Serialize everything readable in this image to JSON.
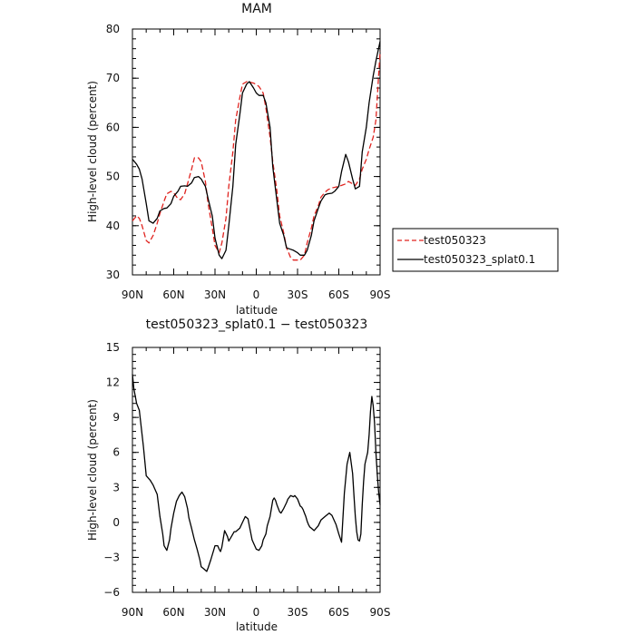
{
  "colors": {
    "test": "#e0231f",
    "splat": "#000000",
    "axis": "#000000",
    "background": "#ffffff"
  },
  "chart_data": [
    {
      "type": "line",
      "title": "MAM",
      "xlabel": "latitude",
      "ylabel": "High-level cloud (percent)",
      "xlim": [
        90,
        -90
      ],
      "ylim": [
        30,
        80
      ],
      "grid": false,
      "legend_placement": "right",
      "xticks": [
        90,
        60,
        30,
        0,
        -30,
        -60,
        -90
      ],
      "xtick_labels": [
        "90N",
        "60N",
        "30N",
        "0",
        "30S",
        "60S",
        "90S"
      ],
      "yticks": [
        30,
        40,
        50,
        60,
        70,
        80
      ],
      "ytick_labels": [
        "30",
        "40",
        "50",
        "60",
        "70",
        "80"
      ],
      "series": [
        {
          "name": "test050323",
          "style": "dashed",
          "color": "#e0231f",
          "x": [
            90,
            87,
            85,
            83,
            80,
            78,
            75,
            72,
            70,
            67,
            65,
            62,
            60,
            57,
            55,
            52,
            50,
            47,
            45,
            42,
            40,
            37,
            35,
            32,
            30,
            27,
            25,
            22,
            20,
            17,
            15,
            12,
            10,
            7,
            5,
            2,
            0,
            -2,
            -5,
            -7,
            -10,
            -12,
            -15,
            -17,
            -20,
            -22,
            -25,
            -27,
            -30,
            -32,
            -35,
            -37,
            -40,
            -42,
            -45,
            -47,
            -50,
            -52,
            -55,
            -57,
            -60,
            -62,
            -65,
            -67,
            -70,
            -72,
            -75,
            -77,
            -80,
            -82,
            -85,
            -87,
            -90
          ],
          "y": [
            41,
            42,
            41.5,
            40,
            37,
            36.5,
            38,
            40.5,
            42.5,
            45,
            46.5,
            47,
            46.7,
            45.5,
            45.3,
            46.5,
            48.5,
            51.5,
            53.8,
            53.8,
            53,
            49,
            44.5,
            39.5,
            36,
            34.5,
            36.5,
            41.5,
            48,
            55,
            61.5,
            66,
            68.8,
            69.3,
            69.2,
            69,
            68.7,
            68.3,
            67,
            64,
            58,
            53,
            47,
            42,
            38.5,
            35.5,
            33.5,
            33,
            33,
            33,
            34,
            36.5,
            39.5,
            42,
            44,
            45.8,
            46.8,
            47.3,
            47.7,
            47.8,
            48,
            48.2,
            48.5,
            49,
            48.5,
            48.2,
            49.5,
            51.5,
            53.5,
            55.5,
            58,
            61.5,
            75.5
          ]
        },
        {
          "name": "test050323_splat0.1",
          "style": "solid",
          "color": "#000000",
          "x": [
            90,
            87,
            85,
            83,
            80,
            78,
            75,
            72,
            70,
            67,
            65,
            62,
            60,
            57,
            55,
            52,
            50,
            47,
            45,
            42,
            40,
            37,
            35,
            32,
            30,
            27,
            25,
            22,
            20,
            17,
            15,
            12,
            10,
            7,
            5,
            2,
            0,
            -2,
            -5,
            -7,
            -10,
            -12,
            -15,
            -17,
            -20,
            -22,
            -25,
            -27,
            -30,
            -32,
            -35,
            -37,
            -40,
            -42,
            -45,
            -47,
            -50,
            -52,
            -55,
            -57,
            -60,
            -62,
            -65,
            -67,
            -70,
            -72,
            -75,
            -77,
            -80,
            -82,
            -85,
            -87,
            -90
          ],
          "y": [
            53.5,
            52.5,
            51.5,
            49.5,
            44.5,
            41,
            40.5,
            41.5,
            43,
            43.5,
            43.6,
            44.5,
            46,
            47,
            48,
            48.1,
            48,
            48.7,
            49.8,
            50,
            49.5,
            48,
            45.5,
            42,
            37.5,
            34,
            33.3,
            35,
            40,
            48,
            56.5,
            62.5,
            67,
            68.8,
            69.3,
            68,
            67,
            66.5,
            66.5,
            65,
            60,
            52,
            45,
            40.5,
            38,
            35.5,
            35.2,
            35,
            34.5,
            34,
            34,
            35,
            38,
            41,
            43.5,
            45,
            46.3,
            46.5,
            46.6,
            47,
            48,
            51,
            54.5,
            53,
            49.5,
            47.5,
            48,
            55,
            60,
            65,
            70.5,
            73.5,
            77.5
          ]
        }
      ]
    },
    {
      "type": "line",
      "title": "test050323_splat0.1 − test050323",
      "xlabel": "latitude",
      "ylabel": "High-level cloud (percent)",
      "xlim": [
        90,
        -90
      ],
      "ylim": [
        -6,
        15
      ],
      "grid": false,
      "xticks": [
        90,
        60,
        30,
        0,
        -30,
        -60,
        -90
      ],
      "xtick_labels": [
        "90N",
        "60N",
        "30N",
        "0",
        "30S",
        "60S",
        "90S"
      ],
      "yticks": [
        -6,
        -3,
        0,
        3,
        6,
        9,
        12,
        15
      ],
      "ytick_labels": [
        "−6",
        "−3",
        "0",
        "3",
        "6",
        "9",
        "12",
        "15"
      ],
      "series": [
        {
          "style": "solid",
          "color": "#000000",
          "x": [
            90,
            89,
            87,
            85,
            82,
            80,
            77,
            75,
            72,
            70,
            68,
            67,
            65,
            63,
            62,
            60,
            58,
            56,
            54,
            52,
            50,
            49,
            47,
            45,
            43,
            41,
            40,
            38,
            36,
            35,
            33,
            31,
            30,
            28,
            27,
            26,
            25,
            24,
            23,
            21,
            20,
            18,
            16,
            15,
            12,
            10,
            8,
            6,
            5,
            3,
            0,
            -2,
            -4,
            -5,
            -7,
            -8,
            -10,
            -11,
            -12,
            -13,
            -14,
            -15,
            -17,
            -18,
            -20,
            -22,
            -23,
            -25,
            -27,
            -28,
            -30,
            -31,
            -32,
            -33,
            -34,
            -35,
            -36,
            -37,
            -38,
            -39,
            -40,
            -42,
            -45,
            -47,
            -50,
            -53,
            -55,
            -58,
            -60,
            -62,
            -64,
            -66,
            -68,
            -70,
            -71,
            -72,
            -73,
            -74,
            -75,
            -76,
            -77,
            -78,
            -79,
            -80,
            -81,
            -82,
            -83,
            -84,
            -85,
            -86,
            -87,
            -88,
            -89,
            -90
          ],
          "y": [
            12.7,
            11.5,
            10.2,
            9.6,
            6.5,
            4,
            3.6,
            3.2,
            2.4,
            0.5,
            -1,
            -2,
            -2.4,
            -1.5,
            -0.5,
            0.8,
            1.8,
            2.3,
            2.6,
            2.2,
            1.2,
            0.4,
            -0.5,
            -1.5,
            -2.3,
            -3.2,
            -3.8,
            -4,
            -4.2,
            -3.9,
            -3.2,
            -2.4,
            -2,
            -2,
            -2.3,
            -2.5,
            -2.1,
            -1.4,
            -0.7,
            -1.2,
            -1.6,
            -1.2,
            -0.8,
            -0.8,
            -0.5,
            0,
            0.5,
            0.3,
            -0.3,
            -1.5,
            -2.3,
            -2.4,
            -2,
            -1.5,
            -1,
            -0.3,
            0.5,
            1.2,
            1.9,
            2.1,
            1.9,
            1.5,
            0.9,
            0.8,
            1.2,
            1.7,
            2,
            2.3,
            2.2,
            2.3,
            2,
            1.7,
            1.4,
            1.3,
            1.1,
            0.8,
            0.5,
            0.1,
            -0.2,
            -0.4,
            -0.5,
            -0.7,
            -0.3,
            0.2,
            0.5,
            0.8,
            0.6,
            -0.2,
            -1,
            -1.7,
            2.5,
            5,
            6,
            4.2,
            2.3,
            0.5,
            -0.8,
            -1.5,
            -1.6,
            -1,
            1.5,
            3.5,
            5,
            5.5,
            6,
            7.5,
            9.5,
            10.8,
            10,
            8.5,
            6,
            4,
            2.5,
            1.5
          ]
        }
      ]
    }
  ]
}
